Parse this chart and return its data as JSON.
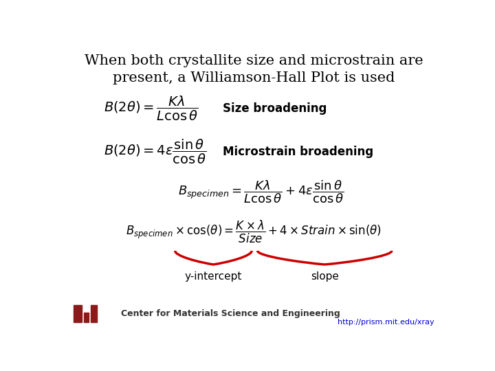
{
  "title_line1": "When both crystallite size and microstrain are",
  "title_line2": "present, a Williamson-Hall Plot is used",
  "formula1": "$B(2\\theta)=\\dfrac{K\\lambda}{L\\cos\\theta}$",
  "label1": "Size broadening",
  "formula2": "$B(2\\theta)=4\\varepsilon\\dfrac{\\sin\\theta}{\\cos\\theta}$",
  "label2": "Microstrain broadening",
  "formula3": "$B_{specimen}=\\dfrac{K\\lambda}{L\\cos\\theta}+4\\varepsilon\\dfrac{\\sin\\theta}{\\cos\\theta}$",
  "formula4": "$B_{specimen}\\times\\cos(\\theta)=\\dfrac{K\\times\\lambda}{Size}+4\\times Strain\\times\\sin(\\theta)$",
  "label_yintercept": "y-intercept",
  "label_slope": "slope",
  "footer_left": "Center for Materials Science and Engineering",
  "footer_right": "http://prism.mit.edu/xray",
  "bg_color": "#ffffff",
  "title_color": "#000000",
  "text_color": "#000000",
  "brace_color": "#cc0000",
  "footer_logo_color": "#8b1a1a",
  "footer_text_color": "#333333",
  "footer_link_color": "#0000cc",
  "title_fontsize": 15,
  "formula_fontsize": 13,
  "label_fontsize": 11,
  "footer_fontsize": 9
}
